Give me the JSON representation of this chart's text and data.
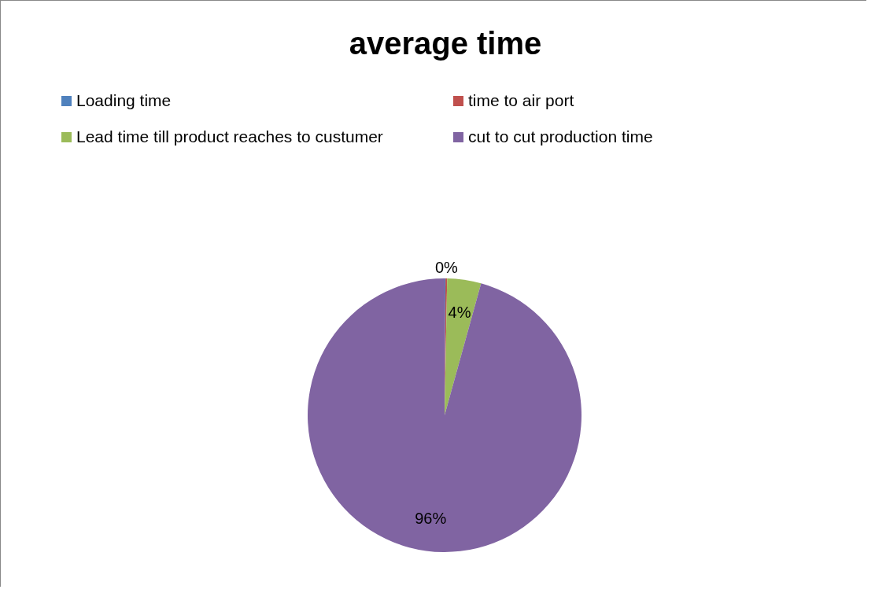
{
  "chart_data": {
    "type": "pie",
    "title": "average time",
    "categories": [
      "Loading time",
      "time to air port",
      "Lead time till product reaches to custumer",
      "cut to cut production time"
    ],
    "values": [
      0.1,
      0.2,
      4,
      95.7
    ],
    "value_labels": [
      null,
      "0%",
      "4%",
      "96%"
    ],
    "colors": [
      "#4f81bd",
      "#c0504d",
      "#9bbb59",
      "#8064a2"
    ],
    "legend": "top"
  }
}
